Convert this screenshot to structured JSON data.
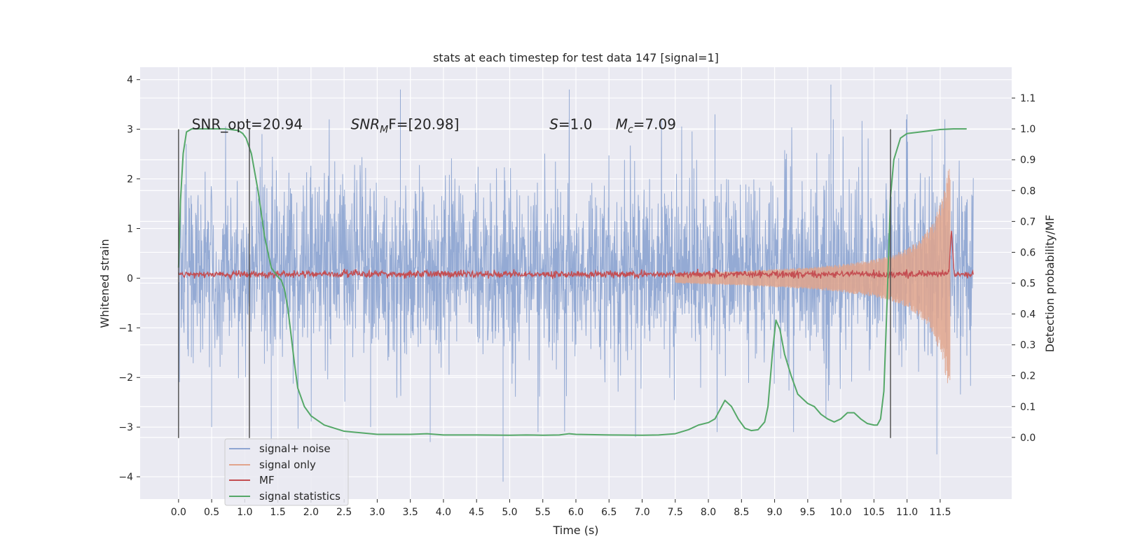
{
  "chart_data": {
    "type": "line",
    "title": "stats at each timestep for test data 147 [signal=1]",
    "xlabel": "Time (s)",
    "ylabel": "Whitened strain",
    "y2label": "Detection probability/MF",
    "xlim": [
      -0.58,
      12.58
    ],
    "ylim": [
      -4.45,
      4.25
    ],
    "y2lim": [
      -0.2,
      1.2
    ],
    "x_ticks": [
      0.0,
      0.5,
      1.0,
      1.5,
      2.0,
      2.5,
      3.0,
      3.5,
      4.0,
      4.5,
      5.0,
      5.5,
      6.0,
      6.5,
      7.0,
      7.5,
      8.0,
      8.5,
      9.0,
      9.5,
      10.0,
      10.5,
      11.0,
      11.5
    ],
    "x_tick_labels": [
      "0.0",
      "0.5",
      "1.0",
      "1.5",
      "2.0",
      "2.5",
      "3.0",
      "3.5",
      "4.0",
      "4.5",
      "5.0",
      "5.5",
      "6.0",
      "6.5",
      "7.0",
      "7.5",
      "8.0",
      "8.5",
      "9.0",
      "9.5",
      "10.0",
      "10.5",
      "11.0",
      "11.5"
    ],
    "y_ticks": [
      -4,
      -3,
      -2,
      -1,
      0,
      1,
      2,
      3,
      4
    ],
    "y_tick_labels": [
      "−4",
      "−3",
      "−2",
      "−1",
      "0",
      "1",
      "2",
      "3",
      "4"
    ],
    "y2_ticks": [
      0.0,
      0.1,
      0.2,
      0.3,
      0.4,
      0.5,
      0.6,
      0.7,
      0.8,
      0.9,
      1.0,
      1.1
    ],
    "y2_tick_labels": [
      "0.0",
      "0.1",
      "0.2",
      "0.3",
      "0.4",
      "0.5",
      "0.6",
      "0.7",
      "0.8",
      "0.9",
      "1.0",
      "1.1"
    ],
    "grid": true,
    "legend_position": "lower-left",
    "annotations": [
      {
        "base": "SNR_opt=20.94",
        "sub": "",
        "tail": "",
        "italic": false,
        "x": 0.2,
        "y": 3.1
      },
      {
        "base": "SNR",
        "sub": "M",
        "tail": "F=[20.98]",
        "italic": true,
        "x": 2.6,
        "y": 3.1
      },
      {
        "base": "S",
        "sub": "",
        "tail": "=1.0",
        "italic": true,
        "x": 5.6,
        "y": 3.1
      },
      {
        "base": "M",
        "sub": "c",
        "tail": "=7.09",
        "italic": true,
        "x": 6.6,
        "y": 3.1
      }
    ],
    "vlines": [
      {
        "x": 0.0,
        "ymin": -3.22,
        "ymax": 3.0
      },
      {
        "x": 1.07,
        "ymin": -3.22,
        "ymax": 3.0
      },
      {
        "x": 10.75,
        "ymin": -3.22,
        "ymax": 3.0
      }
    ],
    "series": [
      {
        "name": "signal+ noise",
        "color": "#8fa6d2",
        "axis": "left",
        "kind": "noise",
        "x_range": [
          0.0,
          12.0
        ],
        "typical_envelope": [
          -1.35,
          1.75
        ],
        "peak_spikes": [
          {
            "x": 3.35,
            "y": 3.8
          },
          {
            "x": 5.9,
            "y": 3.8
          },
          {
            "x": 9.85,
            "y": 3.9
          },
          {
            "x": 4.9,
            "y": -4.1
          },
          {
            "x": 11.45,
            "y": -3.55
          },
          {
            "x": 1.4,
            "y": -3.3
          },
          {
            "x": 3.8,
            "y": -3.3
          },
          {
            "x": 6.9,
            "y": -3.2
          },
          {
            "x": 11.0,
            "y": 3.3
          },
          {
            "x": 0.5,
            "y": -3.0
          },
          {
            "x": 8.1,
            "y": 3.3
          },
          {
            "x": 2.9,
            "y": -3.0
          }
        ]
      },
      {
        "name": "signal only",
        "color": "#e1a48c",
        "axis": "left",
        "kind": "chirp",
        "x_range": [
          7.5,
          11.65
        ],
        "envelope": [
          {
            "x": 7.5,
            "a": 0.1
          },
          {
            "x": 8.5,
            "a": 0.15
          },
          {
            "x": 9.5,
            "a": 0.22
          },
          {
            "x": 10.0,
            "a": 0.28
          },
          {
            "x": 10.5,
            "a": 0.38
          },
          {
            "x": 10.8,
            "a": 0.48
          },
          {
            "x": 11.0,
            "a": 0.6
          },
          {
            "x": 11.2,
            "a": 0.8
          },
          {
            "x": 11.4,
            "a": 1.15
          },
          {
            "x": 11.55,
            "a": 1.7
          },
          {
            "x": 11.63,
            "a": 2.4
          },
          {
            "x": 11.66,
            "a": 2.0
          }
        ]
      },
      {
        "name": "MF",
        "color": "#c44e52",
        "axis": "left",
        "kind": "mf",
        "x_range": [
          0.0,
          12.0
        ],
        "baseline": 0.08,
        "peak": {
          "x": 11.67,
          "y": 1.0
        }
      },
      {
        "name": "signal statistics",
        "color": "#55a868",
        "axis": "right",
        "kind": "line",
        "x": [
          0.0,
          0.03,
          0.07,
          0.12,
          0.2,
          0.4,
          0.7,
          0.9,
          0.97,
          1.02,
          1.1,
          1.2,
          1.3,
          1.4,
          1.5,
          1.55,
          1.6,
          1.65,
          1.7,
          1.75,
          1.8,
          1.9,
          2.0,
          2.2,
          2.5,
          3.0,
          3.5,
          3.75,
          4.0,
          4.5,
          5.0,
          5.25,
          5.5,
          5.75,
          5.9,
          6.0,
          6.5,
          7.0,
          7.25,
          7.5,
          7.7,
          7.85,
          8.0,
          8.1,
          8.2,
          8.25,
          8.35,
          8.45,
          8.55,
          8.65,
          8.75,
          8.85,
          8.9,
          8.97,
          9.02,
          9.08,
          9.15,
          9.25,
          9.35,
          9.45,
          9.5,
          9.6,
          9.7,
          9.8,
          9.9,
          10.0,
          10.1,
          10.2,
          10.3,
          10.4,
          10.5,
          10.55,
          10.6,
          10.65,
          10.7,
          10.75,
          10.8,
          10.9,
          11.0,
          11.2,
          11.5,
          11.7,
          11.9
        ],
        "values": [
          0.55,
          0.77,
          0.92,
          0.99,
          1.0,
          1.0,
          1.0,
          0.995,
          0.985,
          0.97,
          0.92,
          0.8,
          0.65,
          0.55,
          0.52,
          0.51,
          0.48,
          0.42,
          0.33,
          0.24,
          0.16,
          0.1,
          0.07,
          0.04,
          0.02,
          0.01,
          0.01,
          0.012,
          0.008,
          0.008,
          0.007,
          0.008,
          0.007,
          0.008,
          0.012,
          0.01,
          0.008,
          0.007,
          0.008,
          0.012,
          0.025,
          0.04,
          0.048,
          0.06,
          0.1,
          0.12,
          0.1,
          0.06,
          0.03,
          0.022,
          0.025,
          0.05,
          0.1,
          0.28,
          0.38,
          0.35,
          0.27,
          0.2,
          0.14,
          0.12,
          0.11,
          0.1,
          0.075,
          0.06,
          0.05,
          0.06,
          0.08,
          0.08,
          0.06,
          0.045,
          0.04,
          0.04,
          0.06,
          0.15,
          0.45,
          0.78,
          0.9,
          0.97,
          0.985,
          0.99,
          0.998,
          1.0,
          1.0
        ]
      }
    ]
  }
}
